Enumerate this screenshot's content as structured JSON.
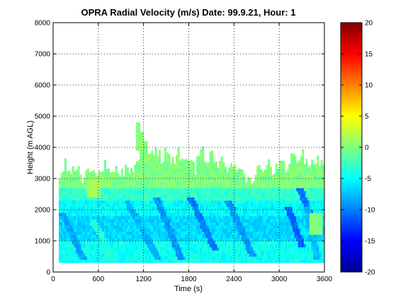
{
  "chart_data": {
    "type": "heatmap",
    "title": "OPRA Radial Velocity (m/s)  Date: 99.9.21, Hour: 1",
    "xlabel": "Time (s)",
    "ylabel": "Height (m AGL)",
    "xlim": [
      0,
      3600
    ],
    "ylim": [
      0,
      8000
    ],
    "x_ticks": [
      "0",
      "600",
      "1200",
      "1800",
      "2400",
      "3000",
      "3600"
    ],
    "y_ticks": [
      "0",
      "1000",
      "2000",
      "3000",
      "4000",
      "5000",
      "6000",
      "7000",
      "8000"
    ],
    "grid": true,
    "colormap": "jet",
    "colorbar": {
      "limits": [
        -20,
        20
      ],
      "ticks": [
        "20",
        "15",
        "10",
        "5",
        "0",
        "-5",
        "-10",
        "-15",
        "-20"
      ]
    },
    "data_extent": {
      "height_min": 300,
      "time_start": 75,
      "time_end": 3580
    },
    "echo_top_height": [
      [
        75,
        3000
      ],
      [
        150,
        3450
      ],
      [
        225,
        3200
      ],
      [
        300,
        3350
      ],
      [
        375,
        2950
      ],
      [
        450,
        3300
      ],
      [
        525,
        3100
      ],
      [
        600,
        3250
      ],
      [
        675,
        3400
      ],
      [
        750,
        3050
      ],
      [
        825,
        3300
      ],
      [
        900,
        3150
      ],
      [
        975,
        3350
      ],
      [
        1050,
        3200
      ],
      [
        1125,
        3550
      ],
      [
        1200,
        3900
      ],
      [
        1275,
        3700
      ],
      [
        1350,
        4050
      ],
      [
        1425,
        3600
      ],
      [
        1500,
        3900
      ],
      [
        1575,
        3500
      ],
      [
        1650,
        3800
      ],
      [
        1725,
        3450
      ],
      [
        1800,
        3700
      ],
      [
        1875,
        3300
      ],
      [
        1950,
        3950
      ],
      [
        2025,
        3600
      ],
      [
        2100,
        3800
      ],
      [
        2175,
        3400
      ],
      [
        2250,
        3650
      ],
      [
        2325,
        3250
      ],
      [
        2400,
        3500
      ],
      [
        2475,
        3150
      ],
      [
        2550,
        3050
      ],
      [
        2625,
        2950
      ],
      [
        2700,
        3400
      ],
      [
        2775,
        3250
      ],
      [
        2850,
        3500
      ],
      [
        2925,
        3200
      ],
      [
        3000,
        3600
      ],
      [
        3075,
        3350
      ],
      [
        3150,
        3700
      ],
      [
        3225,
        3500
      ],
      [
        3300,
        3750
      ],
      [
        3375,
        3300
      ],
      [
        3450,
        3600
      ],
      [
        3525,
        3500
      ],
      [
        3580,
        3550
      ]
    ],
    "plume": [
      [
        1100,
        3900,
        4800
      ],
      [
        1150,
        3700,
        4500
      ],
      [
        1200,
        3500,
        4200
      ],
      [
        1250,
        3400,
        3800
      ]
    ],
    "velocity_bands": [
      {
        "h_min": 300,
        "h_max": 1000,
        "v": -4.5
      },
      {
        "h_min": 1000,
        "h_max": 1800,
        "v": -6.5
      },
      {
        "h_min": 1800,
        "h_max": 2300,
        "v": -5
      },
      {
        "h_min": 2300,
        "h_max": 2700,
        "v": -3
      },
      {
        "h_min": 2700,
        "h_max": 4200,
        "v": 0
      }
    ],
    "streaks": [
      {
        "t0": 100,
        "h0": 1900,
        "t1": 400,
        "h1": 300,
        "v": -8.5
      },
      {
        "t0": 950,
        "h0": 2300,
        "t1": 1400,
        "h1": 300,
        "v": -8
      },
      {
        "t0": 1350,
        "h0": 2400,
        "t1": 1700,
        "h1": 300,
        "v": -9
      },
      {
        "t0": 1800,
        "h0": 2400,
        "t1": 2150,
        "h1": 600,
        "v": -10
      },
      {
        "t0": 2300,
        "h0": 2300,
        "t1": 2650,
        "h1": 400,
        "v": -9
      },
      {
        "t0": 3100,
        "h0": 2100,
        "t1": 3300,
        "h1": 700,
        "v": -11
      },
      {
        "t0": 3250,
        "h0": 2700,
        "t1": 3450,
        "h1": 1500,
        "v": -10.5
      },
      {
        "t0": 3350,
        "h0": 2100,
        "t1": 3500,
        "h1": 300,
        "v": -7.5
      },
      {
        "t0": 500,
        "h0": 1700,
        "t1": 800,
        "h1": 300,
        "v": -3.5
      }
    ],
    "warm_patches": [
      {
        "t0": 3400,
        "t1": 3550,
        "h0": 1200,
        "h1": 1800,
        "v": 0
      },
      {
        "t0": 450,
        "t1": 600,
        "h0": 2400,
        "h1": 2900,
        "v": 1.5
      }
    ]
  }
}
